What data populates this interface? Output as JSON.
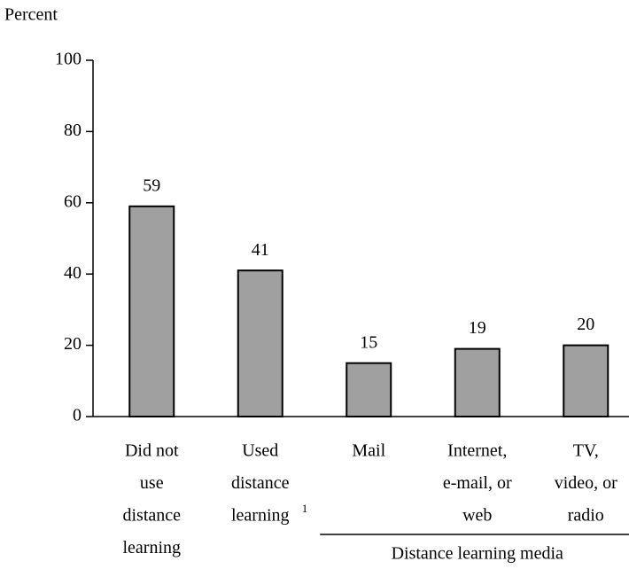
{
  "chart_data": {
    "type": "bar",
    "y_label": "Percent",
    "categories": [
      [
        "Did not",
        "use",
        "distance",
        "learning"
      ],
      [
        "Used",
        "distance",
        "learning"
      ],
      [
        "Mail"
      ],
      [
        "Internet,",
        "e-mail, or",
        "web"
      ],
      [
        "TV,",
        "video, or",
        "radio"
      ]
    ],
    "category_footnotes": [
      null,
      "1",
      null,
      null,
      null
    ],
    "values": [
      59,
      41,
      15,
      19,
      20
    ],
    "color": "#a0a0a0",
    "ylim": [
      0,
      100
    ],
    "yticks": [
      0,
      20,
      40,
      60,
      80,
      100
    ],
    "group": {
      "label": "Distance learning media",
      "from": 2,
      "to": 4
    }
  }
}
